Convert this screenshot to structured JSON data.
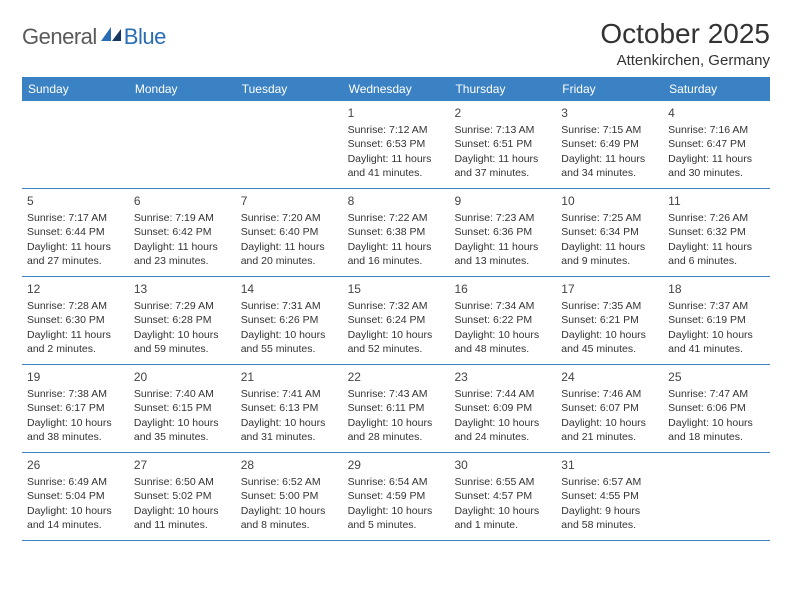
{
  "brand": {
    "part1": "General",
    "part2": "Blue"
  },
  "title": "October 2025",
  "location": "Attenkirchen, Germany",
  "header_bg": "#3a82c4",
  "header_text_color": "#ffffff",
  "border_color": "#3a82c4",
  "weekdays": [
    "Sunday",
    "Monday",
    "Tuesday",
    "Wednesday",
    "Thursday",
    "Friday",
    "Saturday"
  ],
  "weeks": [
    [
      {
        "n": "",
        "sr": "",
        "ss": "",
        "dl1": "",
        "dl2": ""
      },
      {
        "n": "",
        "sr": "",
        "ss": "",
        "dl1": "",
        "dl2": ""
      },
      {
        "n": "",
        "sr": "",
        "ss": "",
        "dl1": "",
        "dl2": ""
      },
      {
        "n": "1",
        "sr": "Sunrise: 7:12 AM",
        "ss": "Sunset: 6:53 PM",
        "dl1": "Daylight: 11 hours",
        "dl2": "and 41 minutes."
      },
      {
        "n": "2",
        "sr": "Sunrise: 7:13 AM",
        "ss": "Sunset: 6:51 PM",
        "dl1": "Daylight: 11 hours",
        "dl2": "and 37 minutes."
      },
      {
        "n": "3",
        "sr": "Sunrise: 7:15 AM",
        "ss": "Sunset: 6:49 PM",
        "dl1": "Daylight: 11 hours",
        "dl2": "and 34 minutes."
      },
      {
        "n": "4",
        "sr": "Sunrise: 7:16 AM",
        "ss": "Sunset: 6:47 PM",
        "dl1": "Daylight: 11 hours",
        "dl2": "and 30 minutes."
      }
    ],
    [
      {
        "n": "5",
        "sr": "Sunrise: 7:17 AM",
        "ss": "Sunset: 6:44 PM",
        "dl1": "Daylight: 11 hours",
        "dl2": "and 27 minutes."
      },
      {
        "n": "6",
        "sr": "Sunrise: 7:19 AM",
        "ss": "Sunset: 6:42 PM",
        "dl1": "Daylight: 11 hours",
        "dl2": "and 23 minutes."
      },
      {
        "n": "7",
        "sr": "Sunrise: 7:20 AM",
        "ss": "Sunset: 6:40 PM",
        "dl1": "Daylight: 11 hours",
        "dl2": "and 20 minutes."
      },
      {
        "n": "8",
        "sr": "Sunrise: 7:22 AM",
        "ss": "Sunset: 6:38 PM",
        "dl1": "Daylight: 11 hours",
        "dl2": "and 16 minutes."
      },
      {
        "n": "9",
        "sr": "Sunrise: 7:23 AM",
        "ss": "Sunset: 6:36 PM",
        "dl1": "Daylight: 11 hours",
        "dl2": "and 13 minutes."
      },
      {
        "n": "10",
        "sr": "Sunrise: 7:25 AM",
        "ss": "Sunset: 6:34 PM",
        "dl1": "Daylight: 11 hours",
        "dl2": "and 9 minutes."
      },
      {
        "n": "11",
        "sr": "Sunrise: 7:26 AM",
        "ss": "Sunset: 6:32 PM",
        "dl1": "Daylight: 11 hours",
        "dl2": "and 6 minutes."
      }
    ],
    [
      {
        "n": "12",
        "sr": "Sunrise: 7:28 AM",
        "ss": "Sunset: 6:30 PM",
        "dl1": "Daylight: 11 hours",
        "dl2": "and 2 minutes."
      },
      {
        "n": "13",
        "sr": "Sunrise: 7:29 AM",
        "ss": "Sunset: 6:28 PM",
        "dl1": "Daylight: 10 hours",
        "dl2": "and 59 minutes."
      },
      {
        "n": "14",
        "sr": "Sunrise: 7:31 AM",
        "ss": "Sunset: 6:26 PM",
        "dl1": "Daylight: 10 hours",
        "dl2": "and 55 minutes."
      },
      {
        "n": "15",
        "sr": "Sunrise: 7:32 AM",
        "ss": "Sunset: 6:24 PM",
        "dl1": "Daylight: 10 hours",
        "dl2": "and 52 minutes."
      },
      {
        "n": "16",
        "sr": "Sunrise: 7:34 AM",
        "ss": "Sunset: 6:22 PM",
        "dl1": "Daylight: 10 hours",
        "dl2": "and 48 minutes."
      },
      {
        "n": "17",
        "sr": "Sunrise: 7:35 AM",
        "ss": "Sunset: 6:21 PM",
        "dl1": "Daylight: 10 hours",
        "dl2": "and 45 minutes."
      },
      {
        "n": "18",
        "sr": "Sunrise: 7:37 AM",
        "ss": "Sunset: 6:19 PM",
        "dl1": "Daylight: 10 hours",
        "dl2": "and 41 minutes."
      }
    ],
    [
      {
        "n": "19",
        "sr": "Sunrise: 7:38 AM",
        "ss": "Sunset: 6:17 PM",
        "dl1": "Daylight: 10 hours",
        "dl2": "and 38 minutes."
      },
      {
        "n": "20",
        "sr": "Sunrise: 7:40 AM",
        "ss": "Sunset: 6:15 PM",
        "dl1": "Daylight: 10 hours",
        "dl2": "and 35 minutes."
      },
      {
        "n": "21",
        "sr": "Sunrise: 7:41 AM",
        "ss": "Sunset: 6:13 PM",
        "dl1": "Daylight: 10 hours",
        "dl2": "and 31 minutes."
      },
      {
        "n": "22",
        "sr": "Sunrise: 7:43 AM",
        "ss": "Sunset: 6:11 PM",
        "dl1": "Daylight: 10 hours",
        "dl2": "and 28 minutes."
      },
      {
        "n": "23",
        "sr": "Sunrise: 7:44 AM",
        "ss": "Sunset: 6:09 PM",
        "dl1": "Daylight: 10 hours",
        "dl2": "and 24 minutes."
      },
      {
        "n": "24",
        "sr": "Sunrise: 7:46 AM",
        "ss": "Sunset: 6:07 PM",
        "dl1": "Daylight: 10 hours",
        "dl2": "and 21 minutes."
      },
      {
        "n": "25",
        "sr": "Sunrise: 7:47 AM",
        "ss": "Sunset: 6:06 PM",
        "dl1": "Daylight: 10 hours",
        "dl2": "and 18 minutes."
      }
    ],
    [
      {
        "n": "26",
        "sr": "Sunrise: 6:49 AM",
        "ss": "Sunset: 5:04 PM",
        "dl1": "Daylight: 10 hours",
        "dl2": "and 14 minutes."
      },
      {
        "n": "27",
        "sr": "Sunrise: 6:50 AM",
        "ss": "Sunset: 5:02 PM",
        "dl1": "Daylight: 10 hours",
        "dl2": "and 11 minutes."
      },
      {
        "n": "28",
        "sr": "Sunrise: 6:52 AM",
        "ss": "Sunset: 5:00 PM",
        "dl1": "Daylight: 10 hours",
        "dl2": "and 8 minutes."
      },
      {
        "n": "29",
        "sr": "Sunrise: 6:54 AM",
        "ss": "Sunset: 4:59 PM",
        "dl1": "Daylight: 10 hours",
        "dl2": "and 5 minutes."
      },
      {
        "n": "30",
        "sr": "Sunrise: 6:55 AM",
        "ss": "Sunset: 4:57 PM",
        "dl1": "Daylight: 10 hours",
        "dl2": "and 1 minute."
      },
      {
        "n": "31",
        "sr": "Sunrise: 6:57 AM",
        "ss": "Sunset: 4:55 PM",
        "dl1": "Daylight: 9 hours",
        "dl2": "and 58 minutes."
      },
      {
        "n": "",
        "sr": "",
        "ss": "",
        "dl1": "",
        "dl2": ""
      }
    ]
  ]
}
